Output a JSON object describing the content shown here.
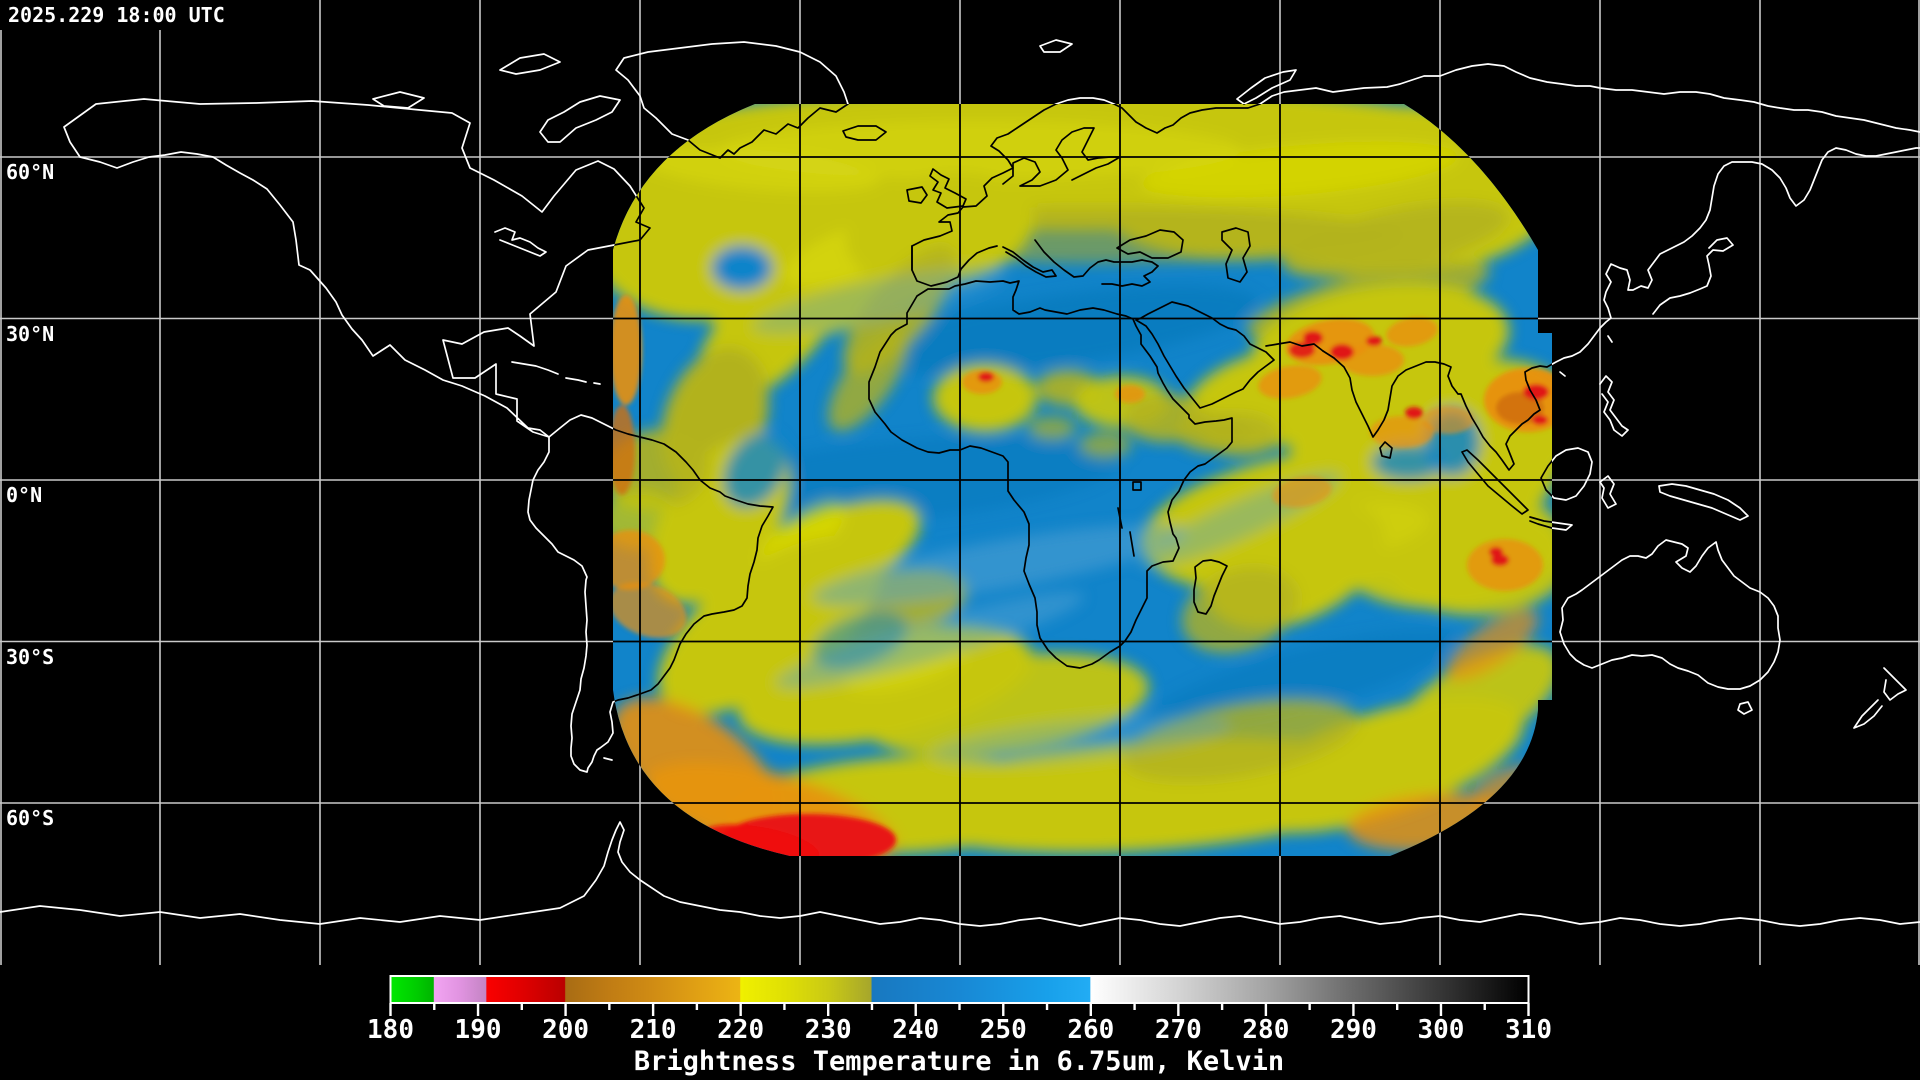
{
  "header": {
    "timestamp": "2025.229 18:00 UTC"
  },
  "map": {
    "lat_labels": [
      "60°N",
      "30°N",
      "0°N",
      "30°S",
      "60°S"
    ]
  },
  "colorbar": {
    "caption": "Brightness Temperature in 6.75um, Kelvin",
    "range_min": 180,
    "range_max": 310,
    "ticks": [
      "180",
      "190",
      "200",
      "210",
      "220",
      "230",
      "240",
      "250",
      "260",
      "270",
      "280",
      "290",
      "300",
      "310"
    ],
    "stops": [
      {
        "k": 180,
        "c": "#00e800"
      },
      {
        "k": 183,
        "c": "#00cc00"
      },
      {
        "k": 184.9,
        "c": "#00b400"
      },
      {
        "k": 185,
        "c": "#f2a4f2"
      },
      {
        "k": 188,
        "c": "#e093e0"
      },
      {
        "k": 190.9,
        "c": "#c484c4"
      },
      {
        "k": 191,
        "c": "#fa0000"
      },
      {
        "k": 195,
        "c": "#e00000"
      },
      {
        "k": 199.9,
        "c": "#ba0000"
      },
      {
        "k": 200,
        "c": "#a86c14"
      },
      {
        "k": 205,
        "c": "#c07c14"
      },
      {
        "k": 210,
        "c": "#d08c14"
      },
      {
        "k": 215,
        "c": "#e0a014"
      },
      {
        "k": 219.9,
        "c": "#ecb414"
      },
      {
        "k": 220,
        "c": "#f0f000"
      },
      {
        "k": 225,
        "c": "#e0e004"
      },
      {
        "k": 230,
        "c": "#caca14"
      },
      {
        "k": 234.9,
        "c": "#a6a62c"
      },
      {
        "k": 235,
        "c": "#1878c0"
      },
      {
        "k": 245,
        "c": "#1888d4"
      },
      {
        "k": 255,
        "c": "#18a0ea"
      },
      {
        "k": 259.9,
        "c": "#22acf4"
      },
      {
        "k": 260,
        "c": "#ffffff"
      },
      {
        "k": 270,
        "c": "#d4d4d4"
      },
      {
        "k": 280,
        "c": "#a4a4a4"
      },
      {
        "k": 290,
        "c": "#6a6a6a"
      },
      {
        "k": 300,
        "c": "#363636"
      },
      {
        "k": 310,
        "c": "#000000"
      }
    ]
  }
}
